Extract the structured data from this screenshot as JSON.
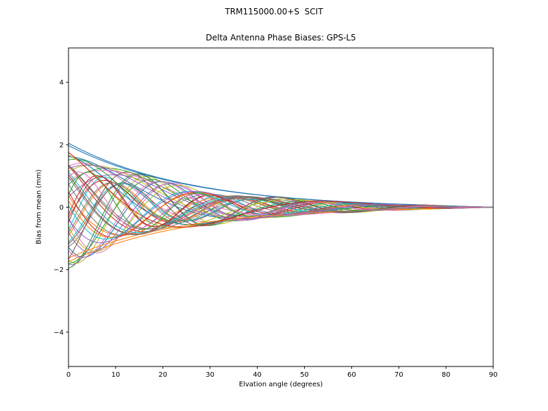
{
  "chart_data": {
    "type": "line",
    "suptitle": "TRM115000.00+S  SCIT",
    "title": "Delta Antenna Phase Biases: GPS-L5",
    "xlabel": "Elvation angle (degrees)",
    "ylabel": "Bias from mean (mm)",
    "xlim": [
      0,
      90
    ],
    "ylim": [
      -5.1,
      5.1
    ],
    "xticks": [
      0,
      10,
      20,
      30,
      40,
      50,
      60,
      70,
      80,
      90
    ],
    "xtick_labels": [
      "0",
      "10",
      "20",
      "30",
      "40",
      "50",
      "60",
      "70",
      "80",
      "90"
    ],
    "yticks": [
      -4,
      -2,
      0,
      2,
      4
    ],
    "ytick_labels": [
      "−4",
      "−2",
      "0",
      "2",
      "4"
    ],
    "grid": false,
    "legend": null,
    "background": "#ffffff",
    "axes_color": "#000000",
    "x_step": 1,
    "model": "y(x) = a * E(x) * sin(w*x*pi/30 + p), where E(x) = scale*exp(-x/tau)*(1-(x/90)^edge_power); biases fan from about +2.1/-1.7 mm at 0 deg elevation and converge to 0 mm at 90 deg",
    "envelope": {
      "scale": 2.05,
      "tau": 25,
      "edge_power": 8
    },
    "series": [
      {
        "c": "#1f77b4",
        "a": 1.0,
        "w": 0.06,
        "p": 1.5708
      },
      {
        "c": "#ff7f0e",
        "a": 0.85,
        "w": 0.06,
        "p": -1.5708
      },
      {
        "c": "#2ca02c",
        "a": 0.92,
        "w": 0.9,
        "p": 0.4
      },
      {
        "c": "#d62728",
        "a": 0.75,
        "w": 1.4,
        "p": 2.1
      },
      {
        "c": "#9467bd",
        "a": 0.88,
        "w": 1.8,
        "p": 3.6
      },
      {
        "c": "#8c564b",
        "a": 0.6,
        "w": 2.2,
        "p": 5.0
      },
      {
        "c": "#e377c2",
        "a": 0.82,
        "w": 1.1,
        "p": 0.9
      },
      {
        "c": "#7f7f7f",
        "a": 0.7,
        "w": 1.6,
        "p": 2.6
      },
      {
        "c": "#bcbd22",
        "a": 0.95,
        "w": 2.0,
        "p": 4.2
      },
      {
        "c": "#17becf",
        "a": 0.65,
        "w": 2.5,
        "p": 5.7
      },
      {
        "c": "#1f77b4",
        "a": 0.85,
        "w": 0.8,
        "p": 1.2
      },
      {
        "c": "#ff7f0e",
        "a": 0.72,
        "w": 1.3,
        "p": 2.9
      },
      {
        "c": "#2ca02c",
        "a": 0.9,
        "w": 1.7,
        "p": 4.5
      },
      {
        "c": "#d62728",
        "a": 0.58,
        "w": 2.1,
        "p": 6.0
      },
      {
        "c": "#9467bd",
        "a": 0.8,
        "w": 1.0,
        "p": 0.2
      },
      {
        "c": "#8c564b",
        "a": 0.68,
        "w": 1.5,
        "p": 1.9
      },
      {
        "c": "#e377c2",
        "a": 0.93,
        "w": 1.9,
        "p": 3.3
      },
      {
        "c": "#7f7f7f",
        "a": 0.62,
        "w": 2.4,
        "p": 4.8
      },
      {
        "c": "#bcbd22",
        "a": 0.87,
        "w": 0.9,
        "p": 0.7
      },
      {
        "c": "#17becf",
        "a": 0.74,
        "w": 1.4,
        "p": 2.3
      },
      {
        "c": "#1f77b4",
        "a": 0.91,
        "w": 1.8,
        "p": 3.9
      },
      {
        "c": "#ff7f0e",
        "a": 0.57,
        "w": 2.3,
        "p": 5.4
      },
      {
        "c": "#2ca02c",
        "a": 0.83,
        "w": 1.2,
        "p": 1.1
      },
      {
        "c": "#d62728",
        "a": 0.71,
        "w": 1.7,
        "p": 2.8
      },
      {
        "c": "#9467bd",
        "a": 0.94,
        "w": 2.1,
        "p": 4.4
      },
      {
        "c": "#8c564b",
        "a": 0.63,
        "w": 2.6,
        "p": 5.9
      },
      {
        "c": "#e377c2",
        "a": 0.86,
        "w": 0.8,
        "p": 0.5
      },
      {
        "c": "#7f7f7f",
        "a": 0.73,
        "w": 1.3,
        "p": 2.0
      },
      {
        "c": "#bcbd22",
        "a": 0.89,
        "w": 1.7,
        "p": 3.5
      },
      {
        "c": "#17becf",
        "a": 0.59,
        "w": 2.2,
        "p": 5.1
      },
      {
        "c": "#1f77b4",
        "a": 0.81,
        "w": 1.1,
        "p": 1.4
      },
      {
        "c": "#ff7f0e",
        "a": 0.69,
        "w": 1.6,
        "p": 3.0
      },
      {
        "c": "#2ca02c",
        "a": 0.96,
        "w": 2.0,
        "p": 4.6
      },
      {
        "c": "#d62728",
        "a": 0.64,
        "w": 2.5,
        "p": 6.1
      },
      {
        "c": "#9467bd",
        "a": 0.84,
        "w": 0.9,
        "p": 0.8
      },
      {
        "c": "#8c564b",
        "a": 0.76,
        "w": 1.4,
        "p": 2.4
      },
      {
        "c": "#e377c2",
        "a": 0.9,
        "w": 1.8,
        "p": 4.0
      },
      {
        "c": "#7f7f7f",
        "a": 0.56,
        "w": 2.3,
        "p": 5.5
      },
      {
        "c": "#bcbd22",
        "a": 0.82,
        "w": 1.2,
        "p": 1.6
      },
      {
        "c": "#17becf",
        "a": 0.7,
        "w": 1.7,
        "p": 3.1
      },
      {
        "c": "#1f77b4",
        "a": 0.97,
        "w": 0.07,
        "p": 1.45
      },
      {
        "c": "#ff7f0e",
        "a": 0.8,
        "w": 0.07,
        "p": -1.45
      },
      {
        "c": "#2ca02c",
        "a": 0.66,
        "w": 2.6,
        "p": 0.3
      },
      {
        "c": "#d62728",
        "a": 0.88,
        "w": 1.0,
        "p": 1.8
      },
      {
        "c": "#9467bd",
        "a": 0.75,
        "w": 1.5,
        "p": 3.4
      },
      {
        "c": "#8c564b",
        "a": 0.92,
        "w": 1.9,
        "p": 5.2
      },
      {
        "c": "#e377c2",
        "a": 0.61,
        "w": 2.4,
        "p": 0.9
      },
      {
        "c": "#7f7f7f",
        "a": 0.79,
        "w": 1.3,
        "p": 2.5
      }
    ]
  }
}
